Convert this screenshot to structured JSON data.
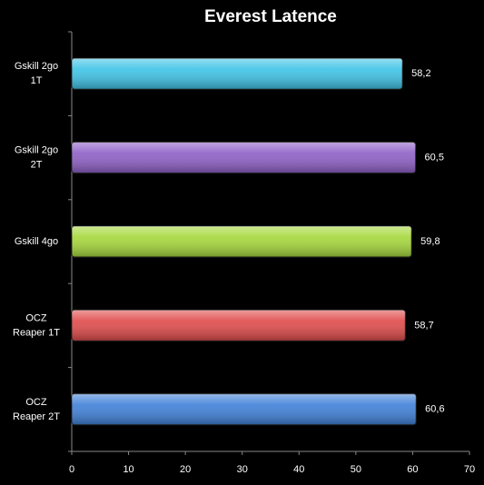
{
  "chart_data": {
    "type": "hbar",
    "title": "Everest Latence",
    "categories": [
      "Gskill 2go\n1T",
      "Gskill 2go\n2T",
      "Gskill 4go",
      "OCZ\nReaper 1T",
      "OCZ\nReaper 2T"
    ],
    "values": [
      58.2,
      60.5,
      59.8,
      58.7,
      60.6
    ],
    "value_labels": [
      "58,2",
      "60,5",
      "59,8",
      "58,7",
      "60,6"
    ],
    "colors": [
      "#3ec3e6",
      "#8e5fc6",
      "#a6d83a",
      "#e04a4a",
      "#3f80d8"
    ],
    "xlim": [
      0,
      70
    ],
    "xticks": [
      0,
      10,
      20,
      30,
      40,
      50,
      60,
      70
    ]
  }
}
